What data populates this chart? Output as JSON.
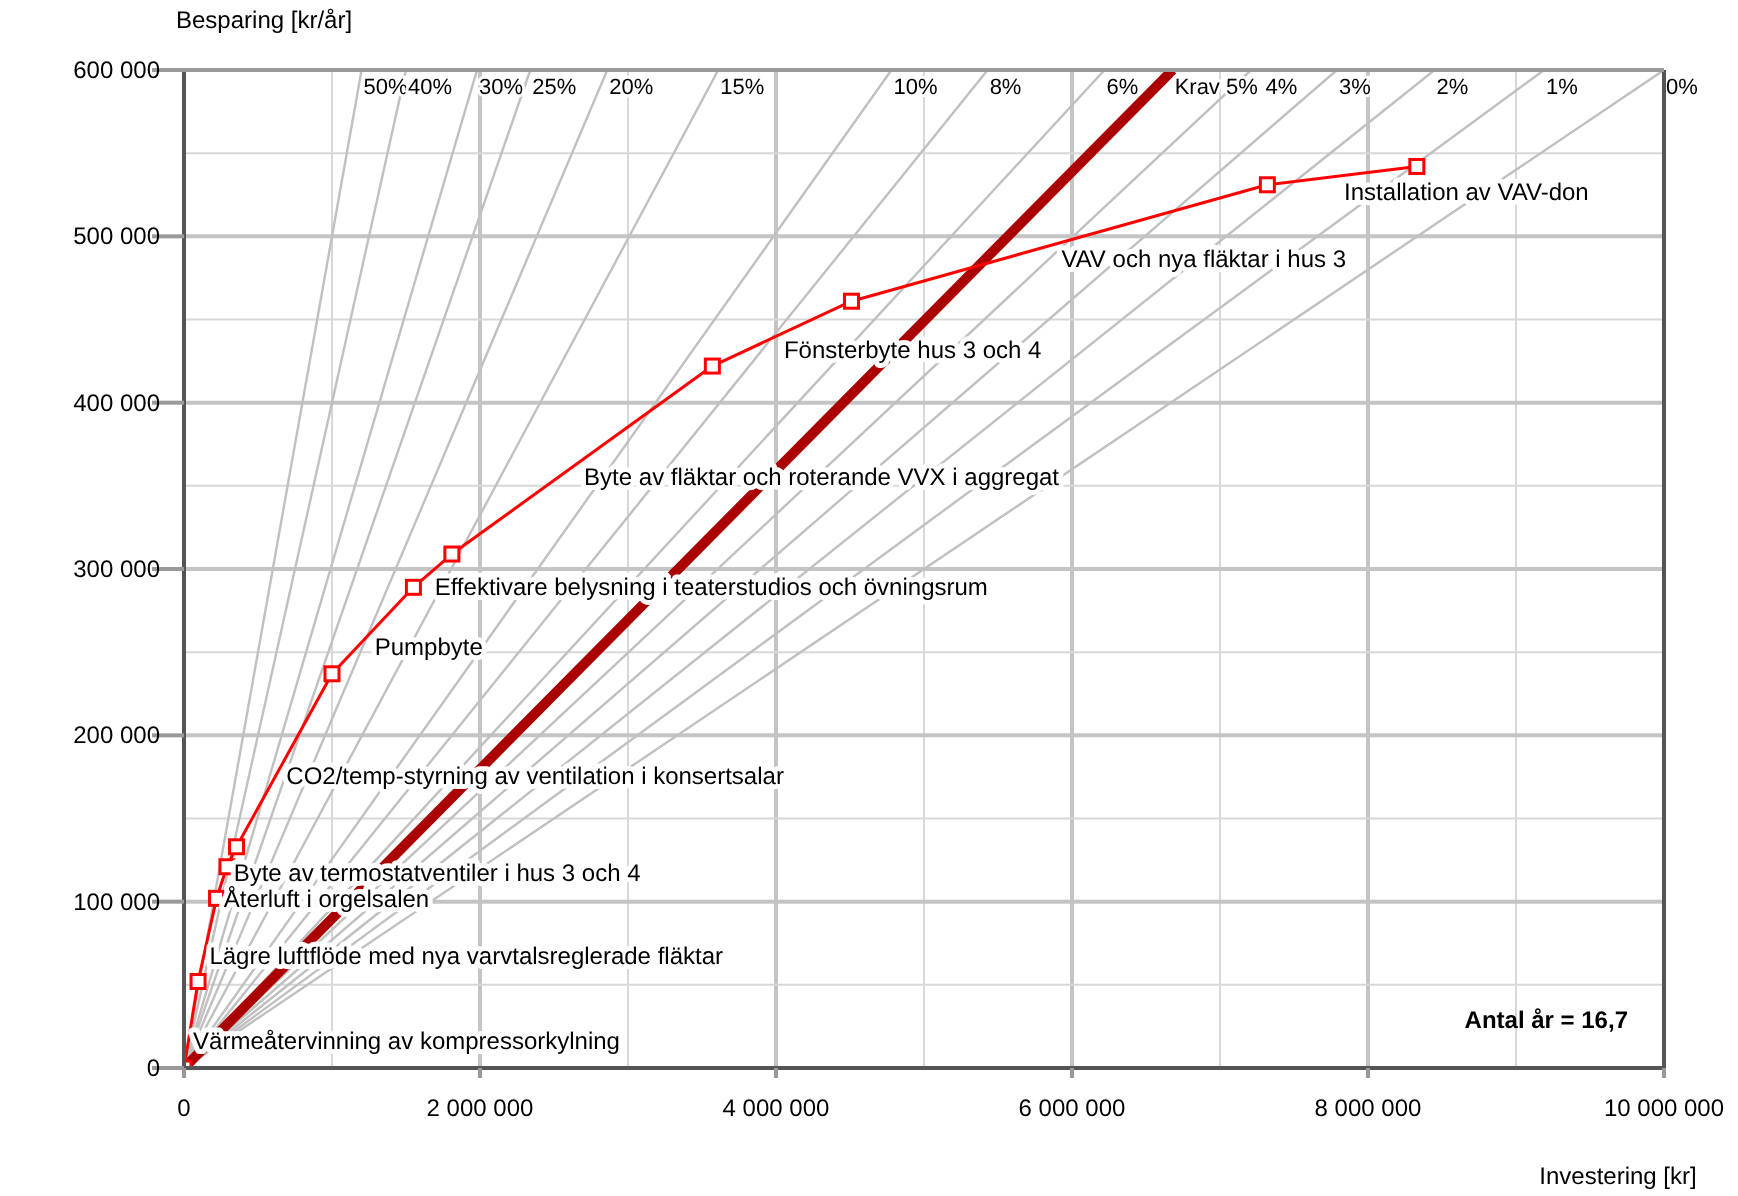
{
  "chart_data": {
    "type": "line",
    "xlabel": "Investering [kr]",
    "ylabel": "Besparing [kr/år]",
    "xlim": [
      0,
      10000000
    ],
    "ylim": [
      0,
      600000
    ],
    "xticks": [
      {
        "value": 0,
        "label": "0"
      },
      {
        "value": 1000000,
        "label": null
      },
      {
        "value": 2000000,
        "label": "2 000 000"
      },
      {
        "value": 3000000,
        "label": null
      },
      {
        "value": 4000000,
        "label": "4 000 000"
      },
      {
        "value": 5000000,
        "label": null
      },
      {
        "value": 6000000,
        "label": "6 000 000"
      },
      {
        "value": 7000000,
        "label": null
      },
      {
        "value": 8000000,
        "label": "8 000 000"
      },
      {
        "value": 9000000,
        "label": null
      },
      {
        "value": 10000000,
        "label": "10 000 000"
      }
    ],
    "yticks": [
      {
        "value": 0,
        "label": "0"
      },
      {
        "value": 50000,
        "label": null
      },
      {
        "value": 100000,
        "label": "100 000"
      },
      {
        "value": 150000,
        "label": null
      },
      {
        "value": 200000,
        "label": "200 000"
      },
      {
        "value": 250000,
        "label": null
      },
      {
        "value": 300000,
        "label": "300 000"
      },
      {
        "value": 350000,
        "label": null
      },
      {
        "value": 400000,
        "label": "400 000"
      },
      {
        "value": 450000,
        "label": null
      },
      {
        "value": 500000,
        "label": "500 000"
      },
      {
        "value": 550000,
        "label": null
      },
      {
        "value": 600000,
        "label": "600 000"
      }
    ],
    "grid": true,
    "series": [
      {
        "name": "50%",
        "color": "#c0c0c0",
        "marker": "none",
        "x": [
          0,
          1200000
        ],
        "values": [
          0,
          600000
        ]
      },
      {
        "name": "40%",
        "color": "#c0c0c0",
        "marker": "none",
        "x": [
          0,
          1500000
        ],
        "values": [
          0,
          600000
        ]
      },
      {
        "name": "30%",
        "color": "#c0c0c0",
        "marker": "none",
        "x": [
          0,
          1980000
        ],
        "values": [
          0,
          600000
        ]
      },
      {
        "name": "25%",
        "color": "#c0c0c0",
        "marker": "none",
        "x": [
          0,
          2340000
        ],
        "values": [
          0,
          600000
        ]
      },
      {
        "name": "20%",
        "color": "#c0c0c0",
        "marker": "none",
        "x": [
          0,
          2860000
        ],
        "values": [
          0,
          600000
        ]
      },
      {
        "name": "15%",
        "color": "#c0c0c0",
        "marker": "none",
        "x": [
          0,
          3610000
        ],
        "values": [
          0,
          600000
        ]
      },
      {
        "name": "10%",
        "color": "#c0c0c0",
        "marker": "none",
        "x": [
          0,
          4780000
        ],
        "values": [
          0,
          600000
        ]
      },
      {
        "name": "8%",
        "color": "#c0c0c0",
        "marker": "none",
        "x": [
          0,
          5430000
        ],
        "values": [
          0,
          600000
        ]
      },
      {
        "name": "6%",
        "color": "#c0c0c0",
        "marker": "none",
        "x": [
          0,
          6220000
        ],
        "values": [
          0,
          600000
        ]
      },
      {
        "name": "4%",
        "color": "#c0c0c0",
        "marker": "none",
        "x": [
          0,
          7210000
        ],
        "values": [
          0,
          600000
        ]
      },
      {
        "name": "3%",
        "color": "#c0c0c0",
        "marker": "none",
        "x": [
          0,
          7790000
        ],
        "values": [
          0,
          600000
        ]
      },
      {
        "name": "2%",
        "color": "#c0c0c0",
        "marker": "none",
        "x": [
          0,
          8450000
        ],
        "values": [
          0,
          600000
        ]
      },
      {
        "name": "1%",
        "color": "#c0c0c0",
        "marker": "none",
        "x": [
          0,
          9190000
        ],
        "values": [
          0,
          600000
        ]
      },
      {
        "name": "0%",
        "color": "#c0c0c0",
        "marker": "none",
        "x": [
          0,
          10000000
        ],
        "values": [
          0,
          600000
        ]
      },
      {
        "name": "Krav 5%",
        "color": "#aa0000",
        "marker": "none",
        "x": [
          0,
          6680000
        ],
        "values": [
          0,
          600000
        ]
      },
      {
        "color": "#ff0000",
        "marker": "square",
        "x": [
          0,
          95000,
          220000,
          290000,
          355000,
          1000000,
          1550000,
          1810000,
          3570000,
          4510000,
          7320000,
          8330000
        ],
        "values": [
          0,
          52000,
          102000,
          121000,
          133000,
          237000,
          289000,
          309000,
          422000,
          461000,
          531000,
          542000
        ]
      }
    ],
    "annotations": [
      {
        "text": "Värmeåtervinning av kompressorkylning",
        "x": 48000,
        "y": 26000
      },
      {
        "text": "Lägre luftflöde med nya varvtalsreglerade fläktar",
        "x": 158000,
        "y": 77000
      },
      {
        "text": "Återluft i orgelsalen",
        "x": 255000,
        "y": 111000
      },
      {
        "text": "Byte av termostatventiler i hus 3 och 4",
        "x": 322000,
        "y": 127000
      },
      {
        "text": "CO2/temp-styrning av ventilation i konsertsalar",
        "x": 678000,
        "y": 185000
      },
      {
        "text": "Pumpbyte",
        "x": 1275000,
        "y": 263000
      },
      {
        "text": "Effektivare belysning i teaterstudios och övningsrum",
        "x": 1680000,
        "y": 299000
      },
      {
        "text": "Byte av fläktar och roterande VVX i aggregat",
        "x": 2690000,
        "y": 365000
      },
      {
        "text": "Fönsterbyte hus 3 och 4",
        "x": 4040000,
        "y": 441000
      },
      {
        "text": "VAV och nya fläktar i hus 3",
        "x": 5915000,
        "y": 496000
      },
      {
        "text": "Installation av VAV-don",
        "x": 7825000,
        "y": 536000
      },
      "Antal år = 16,7"
    ]
  }
}
